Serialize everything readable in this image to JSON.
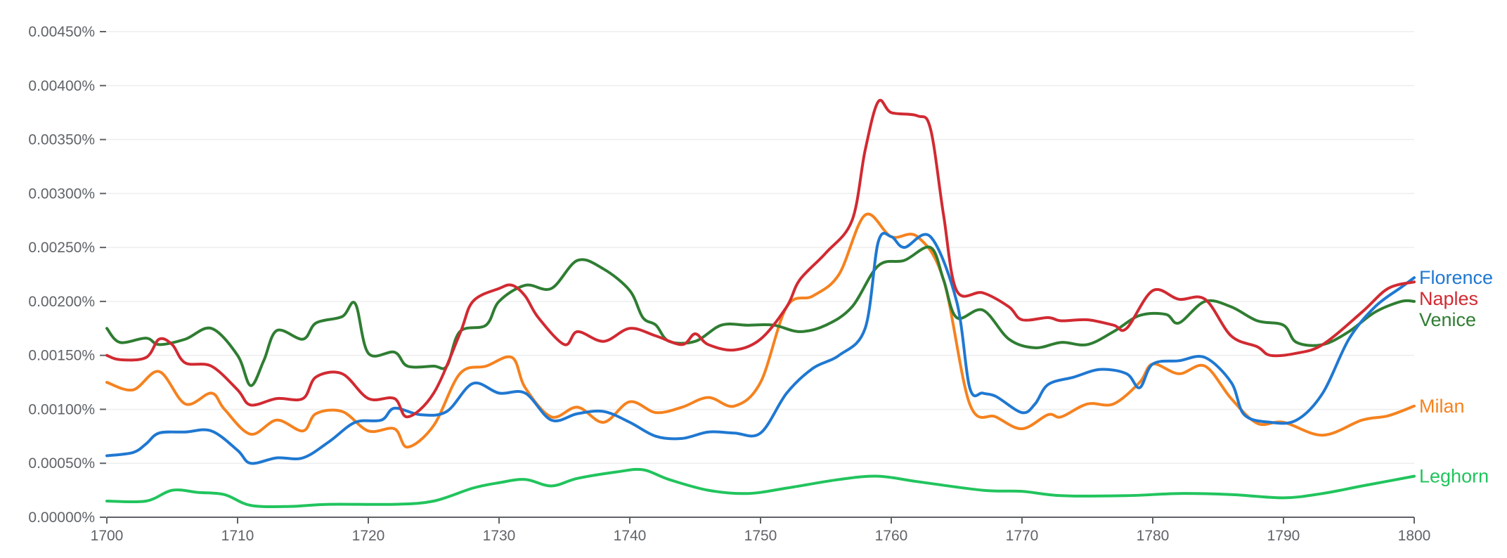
{
  "chart_data": {
    "type": "line",
    "xlim": [
      1700,
      1800
    ],
    "ylim": [
      0,
      0.0045
    ],
    "grid": true,
    "legend": "right-end-labels",
    "x_ticks": [
      {
        "value": 1700,
        "label": "1700"
      },
      {
        "value": 1710,
        "label": "1710"
      },
      {
        "value": 1720,
        "label": "1720"
      },
      {
        "value": 1730,
        "label": "1730"
      },
      {
        "value": 1740,
        "label": "1740"
      },
      {
        "value": 1750,
        "label": "1750"
      },
      {
        "value": 1760,
        "label": "1760"
      },
      {
        "value": 1770,
        "label": "1770"
      },
      {
        "value": 1780,
        "label": "1780"
      },
      {
        "value": 1790,
        "label": "1790"
      },
      {
        "value": 1800,
        "label": "1800"
      }
    ],
    "y_ticks": [
      {
        "value": 0,
        "label": "0.00000%"
      },
      {
        "value": 0.0005,
        "label": "0.00050%"
      },
      {
        "value": 0.001,
        "label": "0.00100%"
      },
      {
        "value": 0.0015,
        "label": "0.00150%"
      },
      {
        "value": 0.002,
        "label": "0.00200%"
      },
      {
        "value": 0.0025,
        "label": "0.00250%"
      },
      {
        "value": 0.003,
        "label": "0.00300%"
      },
      {
        "value": 0.0035,
        "label": "0.00350%"
      },
      {
        "value": 0.004,
        "label": "0.00400%"
      },
      {
        "value": 0.0045,
        "label": "0.00450%"
      }
    ],
    "series": [
      {
        "name": "Leghorn",
        "color": "#21c45d",
        "points": [
          [
            1700,
            0.00015
          ],
          [
            1703,
            0.00015
          ],
          [
            1705,
            0.00025
          ],
          [
            1707,
            0.00023
          ],
          [
            1709,
            0.00021
          ],
          [
            1711,
            0.00011
          ],
          [
            1714,
            0.0001
          ],
          [
            1717,
            0.00012
          ],
          [
            1722,
            0.00012
          ],
          [
            1725,
            0.00015
          ],
          [
            1728,
            0.00027
          ],
          [
            1730,
            0.00032
          ],
          [
            1732,
            0.00035
          ],
          [
            1734,
            0.00029
          ],
          [
            1736,
            0.00036
          ],
          [
            1739,
            0.00042
          ],
          [
            1741,
            0.00044
          ],
          [
            1743,
            0.00035
          ],
          [
            1746,
            0.00025
          ],
          [
            1749,
            0.00022
          ],
          [
            1752,
            0.00027
          ],
          [
            1756,
            0.00035
          ],
          [
            1759,
            0.00038
          ],
          [
            1762,
            0.00033
          ],
          [
            1767,
            0.00025
          ],
          [
            1770,
            0.00024
          ],
          [
            1773,
            0.0002
          ],
          [
            1778,
            0.0002
          ],
          [
            1782,
            0.00022
          ],
          [
            1786,
            0.00021
          ],
          [
            1790,
            0.00018
          ],
          [
            1793,
            0.00022
          ],
          [
            1796,
            0.00029
          ],
          [
            1800,
            0.00038
          ]
        ]
      },
      {
        "name": "Milan",
        "color": "#f5821f",
        "points": [
          [
            1700,
            0.00125
          ],
          [
            1702,
            0.00118
          ],
          [
            1704,
            0.00135
          ],
          [
            1706,
            0.00105
          ],
          [
            1708,
            0.00115
          ],
          [
            1709,
            0.001
          ],
          [
            1711,
            0.00077
          ],
          [
            1713,
            0.0009
          ],
          [
            1715,
            0.0008
          ],
          [
            1716,
            0.00096
          ],
          [
            1718,
            0.00098
          ],
          [
            1720,
            0.0008
          ],
          [
            1722,
            0.00082
          ],
          [
            1723,
            0.00065
          ],
          [
            1725,
            0.00085
          ],
          [
            1727,
            0.00133
          ],
          [
            1729,
            0.0014
          ],
          [
            1731,
            0.00148
          ],
          [
            1732,
            0.0012
          ],
          [
            1734,
            0.00093
          ],
          [
            1736,
            0.00102
          ],
          [
            1738,
            0.00088
          ],
          [
            1740,
            0.00107
          ],
          [
            1742,
            0.00097
          ],
          [
            1744,
            0.00102
          ],
          [
            1746,
            0.00111
          ],
          [
            1748,
            0.00103
          ],
          [
            1750,
            0.00125
          ],
          [
            1752,
            0.00195
          ],
          [
            1754,
            0.00205
          ],
          [
            1756,
            0.00225
          ],
          [
            1758,
            0.0028
          ],
          [
            1760,
            0.0026
          ],
          [
            1762,
            0.0026
          ],
          [
            1764,
            0.0022
          ],
          [
            1766,
            0.00105
          ],
          [
            1768,
            0.00093
          ],
          [
            1770,
            0.00082
          ],
          [
            1772,
            0.00095
          ],
          [
            1773,
            0.00093
          ],
          [
            1775,
            0.00105
          ],
          [
            1777,
            0.00105
          ],
          [
            1779,
            0.00125
          ],
          [
            1780,
            0.00142
          ],
          [
            1782,
            0.00133
          ],
          [
            1784,
            0.0014
          ],
          [
            1786,
            0.0011
          ],
          [
            1788,
            0.00087
          ],
          [
            1790,
            0.00088
          ],
          [
            1793,
            0.00076
          ],
          [
            1796,
            0.0009
          ],
          [
            1798,
            0.00094
          ],
          [
            1800,
            0.00103
          ]
        ]
      },
      {
        "name": "Venice",
        "color": "#2f7d32",
        "points": [
          [
            1700,
            0.00175
          ],
          [
            1701,
            0.00162
          ],
          [
            1703,
            0.00166
          ],
          [
            1704,
            0.0016
          ],
          [
            1706,
            0.00165
          ],
          [
            1708,
            0.00175
          ],
          [
            1710,
            0.0015
          ],
          [
            1711,
            0.00122
          ],
          [
            1712,
            0.00145
          ],
          [
            1713,
            0.00173
          ],
          [
            1715,
            0.00165
          ],
          [
            1716,
            0.0018
          ],
          [
            1718,
            0.00186
          ],
          [
            1719,
            0.00198
          ],
          [
            1720,
            0.00152
          ],
          [
            1722,
            0.00153
          ],
          [
            1723,
            0.0014
          ],
          [
            1725,
            0.0014
          ],
          [
            1726,
            0.0014
          ],
          [
            1727,
            0.00172
          ],
          [
            1729,
            0.00178
          ],
          [
            1730,
            0.002
          ],
          [
            1732,
            0.00215
          ],
          [
            1734,
            0.00212
          ],
          [
            1736,
            0.00238
          ],
          [
            1738,
            0.0023
          ],
          [
            1740,
            0.0021
          ],
          [
            1741,
            0.00185
          ],
          [
            1742,
            0.00178
          ],
          [
            1743,
            0.00163
          ],
          [
            1745,
            0.00163
          ],
          [
            1747,
            0.00178
          ],
          [
            1749,
            0.00178
          ],
          [
            1751,
            0.00178
          ],
          [
            1753,
            0.00172
          ],
          [
            1755,
            0.00178
          ],
          [
            1757,
            0.00195
          ],
          [
            1759,
            0.00233
          ],
          [
            1761,
            0.00238
          ],
          [
            1763,
            0.0025
          ],
          [
            1764,
            0.0022
          ],
          [
            1765,
            0.00185
          ],
          [
            1767,
            0.00192
          ],
          [
            1769,
            0.00165
          ],
          [
            1771,
            0.00157
          ],
          [
            1773,
            0.00162
          ],
          [
            1775,
            0.0016
          ],
          [
            1777,
            0.00172
          ],
          [
            1779,
            0.00187
          ],
          [
            1781,
            0.00188
          ],
          [
            1782,
            0.0018
          ],
          [
            1784,
            0.002
          ],
          [
            1786,
            0.00195
          ],
          [
            1788,
            0.00182
          ],
          [
            1790,
            0.00178
          ],
          [
            1791,
            0.00162
          ],
          [
            1793,
            0.0016
          ],
          [
            1795,
            0.00172
          ],
          [
            1797,
            0.0019
          ],
          [
            1799,
            0.002
          ],
          [
            1800,
            0.002
          ]
        ]
      },
      {
        "name": "Florence",
        "color": "#1f78d1",
        "points": [
          [
            1700,
            0.00057
          ],
          [
            1702,
            0.0006
          ],
          [
            1703,
            0.00068
          ],
          [
            1704,
            0.00078
          ],
          [
            1706,
            0.00079
          ],
          [
            1708,
            0.0008
          ],
          [
            1710,
            0.00062
          ],
          [
            1711,
            0.0005
          ],
          [
            1713,
            0.00055
          ],
          [
            1715,
            0.00055
          ],
          [
            1717,
            0.0007
          ],
          [
            1719,
            0.00088
          ],
          [
            1721,
            0.0009
          ],
          [
            1722,
            0.00101
          ],
          [
            1724,
            0.00095
          ],
          [
            1726,
            0.00098
          ],
          [
            1728,
            0.00124
          ],
          [
            1730,
            0.00115
          ],
          [
            1732,
            0.00115
          ],
          [
            1734,
            0.0009
          ],
          [
            1736,
            0.00096
          ],
          [
            1738,
            0.00098
          ],
          [
            1740,
            0.00088
          ],
          [
            1742,
            0.00075
          ],
          [
            1744,
            0.00073
          ],
          [
            1746,
            0.00079
          ],
          [
            1748,
            0.00078
          ],
          [
            1750,
            0.00078
          ],
          [
            1752,
            0.00115
          ],
          [
            1754,
            0.00138
          ],
          [
            1756,
            0.0015
          ],
          [
            1758,
            0.00175
          ],
          [
            1759,
            0.00255
          ],
          [
            1760,
            0.0026
          ],
          [
            1761,
            0.0025
          ],
          [
            1763,
            0.0026
          ],
          [
            1765,
            0.002
          ],
          [
            1766,
            0.0012
          ],
          [
            1767,
            0.00115
          ],
          [
            1768,
            0.00112
          ],
          [
            1770,
            0.00097
          ],
          [
            1771,
            0.00105
          ],
          [
            1772,
            0.00123
          ],
          [
            1774,
            0.0013
          ],
          [
            1776,
            0.00137
          ],
          [
            1778,
            0.00133
          ],
          [
            1779,
            0.0012
          ],
          [
            1780,
            0.00142
          ],
          [
            1782,
            0.00145
          ],
          [
            1784,
            0.00148
          ],
          [
            1786,
            0.00125
          ],
          [
            1787,
            0.00095
          ],
          [
            1789,
            0.00088
          ],
          [
            1791,
            0.0009
          ],
          [
            1793,
            0.00115
          ],
          [
            1795,
            0.00165
          ],
          [
            1797,
            0.00195
          ],
          [
            1799,
            0.00213
          ],
          [
            1800,
            0.00222
          ]
        ]
      },
      {
        "name": "Naples",
        "color": "#d12a32",
        "points": [
          [
            1700,
            0.0015
          ],
          [
            1701,
            0.00146
          ],
          [
            1703,
            0.00148
          ],
          [
            1704,
            0.00165
          ],
          [
            1705,
            0.0016
          ],
          [
            1706,
            0.00143
          ],
          [
            1708,
            0.0014
          ],
          [
            1710,
            0.00118
          ],
          [
            1711,
            0.00104
          ],
          [
            1713,
            0.0011
          ],
          [
            1715,
            0.0011
          ],
          [
            1716,
            0.0013
          ],
          [
            1718,
            0.00133
          ],
          [
            1720,
            0.0011
          ],
          [
            1722,
            0.0011
          ],
          [
            1723,
            0.00093
          ],
          [
            1725,
            0.00115
          ],
          [
            1727,
            0.0017
          ],
          [
            1728,
            0.002
          ],
          [
            1730,
            0.00212
          ],
          [
            1731,
            0.00215
          ],
          [
            1732,
            0.00205
          ],
          [
            1733,
            0.00185
          ],
          [
            1735,
            0.0016
          ],
          [
            1736,
            0.00172
          ],
          [
            1738,
            0.00163
          ],
          [
            1740,
            0.00175
          ],
          [
            1742,
            0.00168
          ],
          [
            1744,
            0.0016
          ],
          [
            1745,
            0.0017
          ],
          [
            1746,
            0.0016
          ],
          [
            1748,
            0.00155
          ],
          [
            1750,
            0.00165
          ],
          [
            1752,
            0.00195
          ],
          [
            1753,
            0.0022
          ],
          [
            1755,
            0.00245
          ],
          [
            1757,
            0.00275
          ],
          [
            1758,
            0.0034
          ],
          [
            1759,
            0.00385
          ],
          [
            1760,
            0.00375
          ],
          [
            1762,
            0.00372
          ],
          [
            1763,
            0.0036
          ],
          [
            1764,
            0.0028
          ],
          [
            1765,
            0.0021
          ],
          [
            1767,
            0.00208
          ],
          [
            1769,
            0.00195
          ],
          [
            1770,
            0.00183
          ],
          [
            1772,
            0.00185
          ],
          [
            1773,
            0.00182
          ],
          [
            1775,
            0.00183
          ],
          [
            1777,
            0.00178
          ],
          [
            1778,
            0.00175
          ],
          [
            1780,
            0.0021
          ],
          [
            1782,
            0.00202
          ],
          [
            1784,
            0.00202
          ],
          [
            1786,
            0.00168
          ],
          [
            1788,
            0.00158
          ],
          [
            1789,
            0.0015
          ],
          [
            1791,
            0.00152
          ],
          [
            1793,
            0.0016
          ],
          [
            1796,
            0.0019
          ],
          [
            1798,
            0.00212
          ],
          [
            1800,
            0.00218
          ]
        ]
      }
    ]
  }
}
